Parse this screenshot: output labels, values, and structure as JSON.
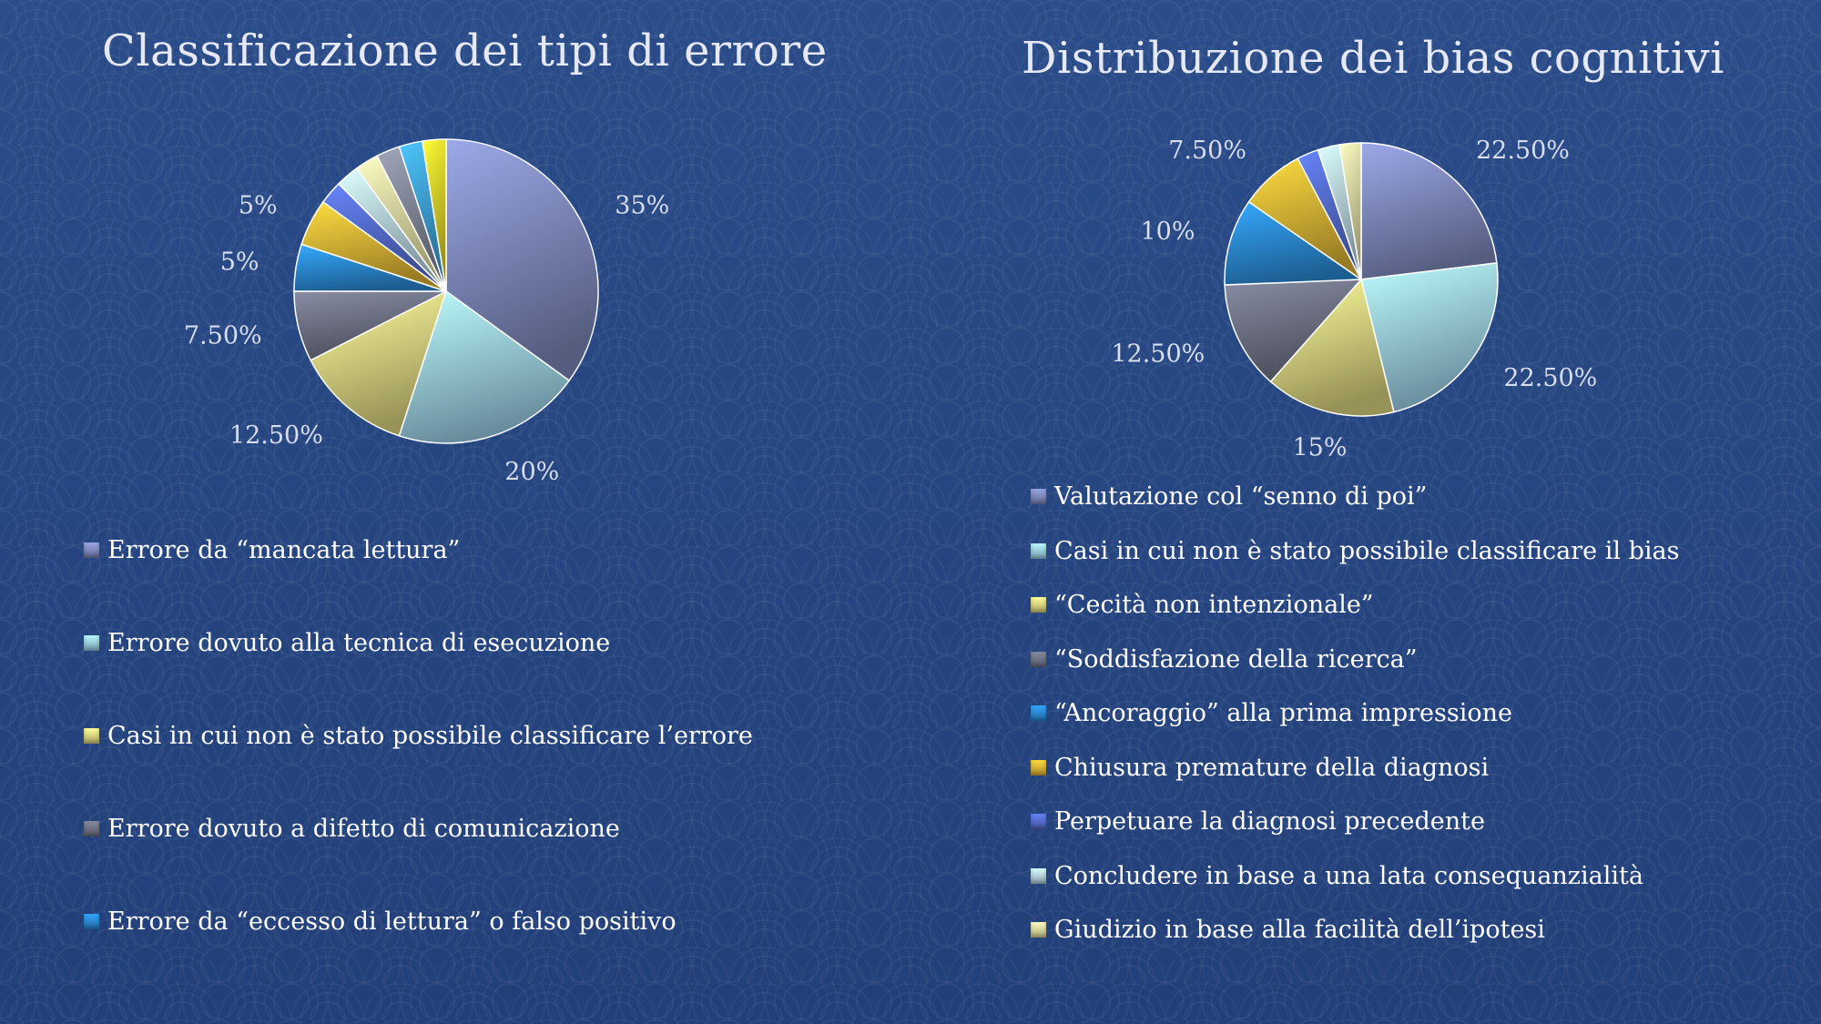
{
  "slide": {
    "background_color": "#26457f"
  },
  "chart_data": [
    {
      "type": "pie",
      "title": "Classificazione dei tipi di errore",
      "legend_position": "bottom",
      "slices": [
        {
          "label": "Errore da “mancata lettura”",
          "value": 35,
          "display": "35%",
          "color": "#8b97cf"
        },
        {
          "label": "Errore dovuto alla tecnica di esecuzione",
          "value": 20,
          "display": "20%",
          "color": "#a9e2fb"
        },
        {
          "label": "Casi in cui non è stato possibile classificare l’errore",
          "value": 12.5,
          "display": "12.50%",
          "color": "#f4ec8c"
        },
        {
          "label": "Errore dovuto a difetto di comunicazione",
          "value": 7.5,
          "display": "7.50%",
          "color": "#7a7e92"
        },
        {
          "label": "Errore da “eccesso di lettura” o falso positivo",
          "value": 5,
          "display": "5%",
          "color": "#2f98ec"
        },
        {
          "label": "",
          "value": 5,
          "display": "5%",
          "color": "#f6c63a"
        },
        {
          "label": "",
          "value": 2.5,
          "display": "",
          "color": "#5d78e2"
        },
        {
          "label": "",
          "value": 2.5,
          "display": "",
          "color": "#c6e9f9"
        },
        {
          "label": "",
          "value": 2.5,
          "display": "",
          "color": "#f8f3b0"
        },
        {
          "label": "",
          "value": 2.5,
          "display": "",
          "color": "#9095a8"
        },
        {
          "label": "",
          "value": 2.5,
          "display": "",
          "color": "#45b2ef"
        },
        {
          "label": "",
          "value": 2.5,
          "display": "",
          "color": "#f4e42e"
        }
      ]
    },
    {
      "type": "pie",
      "title": "Distribuzione dei bias cognitivi",
      "legend_position": "bottom",
      "slices": [
        {
          "label": "Valutazione col “senno di poi”",
          "value": 22.5,
          "display": "22.50%",
          "color": "#8b97cf"
        },
        {
          "label": "Casi in cui non è stato possibile classificare il bias",
          "value": 22.5,
          "display": "22.50%",
          "color": "#a9e2fb"
        },
        {
          "label": "“Cecità non intenzionale”",
          "value": 15,
          "display": "15%",
          "color": "#f4ec8c"
        },
        {
          "label": "“Soddisfazione della ricerca”",
          "value": 12.5,
          "display": "12.50%",
          "color": "#7a7e92"
        },
        {
          "label": "“Ancoraggio” alla prima impressione",
          "value": 10,
          "display": "10%",
          "color": "#2f98ec"
        },
        {
          "label": "Chiusura premature della diagnosi",
          "value": 7.5,
          "display": "7.50%",
          "color": "#f6c63a"
        },
        {
          "label": "Perpetuare la diagnosi precedente",
          "value": 2.5,
          "display": "",
          "color": "#5d78e2"
        },
        {
          "label": "Concludere in base a una lata consequanzialità",
          "value": 2.5,
          "display": "",
          "color": "#c6e9f9"
        },
        {
          "label": "Giudizio in base alla facilità dell’ipotesi",
          "value": 2.5,
          "display": "",
          "color": "#f8f3b0"
        }
      ]
    }
  ]
}
